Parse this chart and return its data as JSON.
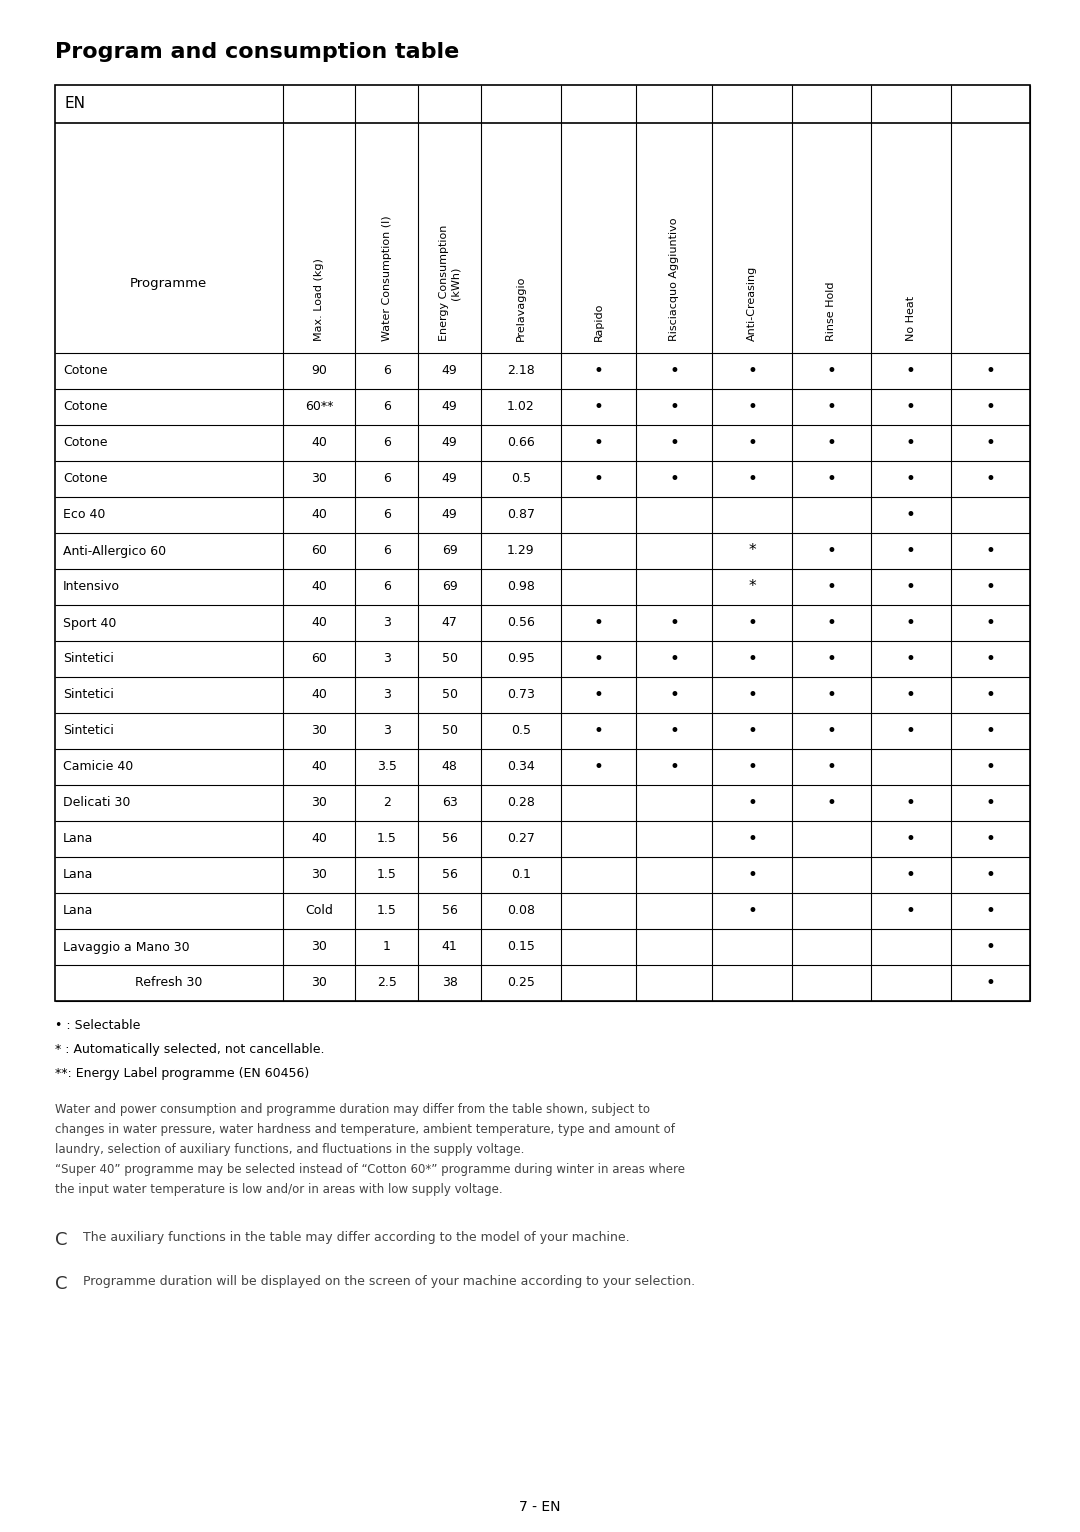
{
  "title": "Program and consumption table",
  "page_label": "EN",
  "rows": [
    {
      "prog": "Cotone",
      "temp": "90",
      "load": "6",
      "water": "49",
      "energy": "2.18",
      "prev": 1,
      "rap": 1,
      "risc": 1,
      "anti": 1,
      "rinse": 1,
      "noheat": 1
    },
    {
      "prog": "Cotone",
      "temp": "60**",
      "load": "6",
      "water": "49",
      "energy": "1.02",
      "prev": 1,
      "rap": 1,
      "risc": 1,
      "anti": 1,
      "rinse": 1,
      "noheat": 1
    },
    {
      "prog": "Cotone",
      "temp": "40",
      "load": "6",
      "water": "49",
      "energy": "0.66",
      "prev": 1,
      "rap": 1,
      "risc": 1,
      "anti": 1,
      "rinse": 1,
      "noheat": 1
    },
    {
      "prog": "Cotone",
      "temp": "30",
      "load": "6",
      "water": "49",
      "energy": "0.5",
      "prev": 1,
      "rap": 1,
      "risc": 1,
      "anti": 1,
      "rinse": 1,
      "noheat": 1
    },
    {
      "prog": "Eco 40",
      "temp": "40",
      "load": "6",
      "water": "49",
      "energy": "0.87",
      "prev": 0,
      "rap": 0,
      "risc": 0,
      "anti": 0,
      "rinse": 1,
      "noheat": 0
    },
    {
      "prog": "Anti-Allergico 60",
      "temp": "60",
      "load": "6",
      "water": "69",
      "energy": "1.29",
      "prev": 0,
      "rap": 0,
      "risc": 2,
      "anti": 1,
      "rinse": 1,
      "noheat": 1
    },
    {
      "prog": "Intensivo",
      "temp": "40",
      "load": "6",
      "water": "69",
      "energy": "0.98",
      "prev": 0,
      "rap": 0,
      "risc": 2,
      "anti": 1,
      "rinse": 1,
      "noheat": 1
    },
    {
      "prog": "Sport 40",
      "temp": "40",
      "load": "3",
      "water": "47",
      "energy": "0.56",
      "prev": 1,
      "rap": 1,
      "risc": 1,
      "anti": 1,
      "rinse": 1,
      "noheat": 1
    },
    {
      "prog": "Sintetici",
      "temp": "60",
      "load": "3",
      "water": "50",
      "energy": "0.95",
      "prev": 1,
      "rap": 1,
      "risc": 1,
      "anti": 1,
      "rinse": 1,
      "noheat": 1
    },
    {
      "prog": "Sintetici",
      "temp": "40",
      "load": "3",
      "water": "50",
      "energy": "0.73",
      "prev": 1,
      "rap": 1,
      "risc": 1,
      "anti": 1,
      "rinse": 1,
      "noheat": 1
    },
    {
      "prog": "Sintetici",
      "temp": "30",
      "load": "3",
      "water": "50",
      "energy": "0.5",
      "prev": 1,
      "rap": 1,
      "risc": 1,
      "anti": 1,
      "rinse": 1,
      "noheat": 1
    },
    {
      "prog": "Camicie 40",
      "temp": "40",
      "load": "3.5",
      "water": "48",
      "energy": "0.34",
      "prev": 1,
      "rap": 1,
      "risc": 1,
      "anti": 1,
      "rinse": 0,
      "noheat": 1
    },
    {
      "prog": "Delicati 30",
      "temp": "30",
      "load": "2",
      "water": "63",
      "energy": "0.28",
      "prev": 0,
      "rap": 0,
      "risc": 1,
      "anti": 1,
      "rinse": 1,
      "noheat": 1
    },
    {
      "prog": "Lana",
      "temp": "40",
      "load": "1.5",
      "water": "56",
      "energy": "0.27",
      "prev": 0,
      "rap": 0,
      "risc": 1,
      "anti": 0,
      "rinse": 1,
      "noheat": 1
    },
    {
      "prog": "Lana",
      "temp": "30",
      "load": "1.5",
      "water": "56",
      "energy": "0.1",
      "prev": 0,
      "rap": 0,
      "risc": 1,
      "anti": 0,
      "rinse": 1,
      "noheat": 1
    },
    {
      "prog": "Lana",
      "temp": "Cold",
      "load": "1.5",
      "water": "56",
      "energy": "0.08",
      "prev": 0,
      "rap": 0,
      "risc": 1,
      "anti": 0,
      "rinse": 1,
      "noheat": 1
    },
    {
      "prog": "Lavaggio a Mano 30",
      "temp": "30",
      "load": "1",
      "water": "41",
      "energy": "0.15",
      "prev": 0,
      "rap": 0,
      "risc": 0,
      "anti": 0,
      "rinse": 0,
      "noheat": 1
    },
    {
      "prog": "Refresh 30",
      "temp": "30",
      "load": "2.5",
      "water": "38",
      "energy": "0.25",
      "prev": 0,
      "rap": 0,
      "risc": 0,
      "anti": 0,
      "rinse": 0,
      "noheat": 1
    }
  ],
  "col_headers_rotated": [
    "Max. Load (kg)",
    "Water Consumption (l)",
    "Energy Consumption\n(kWh)",
    "Prelavaggio",
    "Rapido",
    "Risciacquo Aggiuntivo",
    "Anti-Creasing",
    "Rinse Hold",
    "No Heat"
  ],
  "footnotes": [
    "• : Selectable",
    "* : Automatically selected, not cancellable.",
    "**: Energy Label programme (EN 60456)"
  ],
  "body_text_lines": [
    "Water and power consumption and programme duration may differ from the table shown, subject to",
    "changes in water pressure, water hardness and temperature, ambient temperature, type and amount of",
    "laundry, selection of auxiliary functions, and fluctuations in the supply voltage.",
    "“Super 40” programme may be selected instead of “Cotton 60*” programme during winter in areas where",
    "the input water temperature is low and/or in areas with low supply voltage."
  ],
  "note1": "The auxiliary functions in the table may differ according to the model of your machine.",
  "note2": "Programme duration will be displayed on the screen of your machine according to your selection.",
  "page_num": "7 - EN",
  "refresh_centered": true
}
